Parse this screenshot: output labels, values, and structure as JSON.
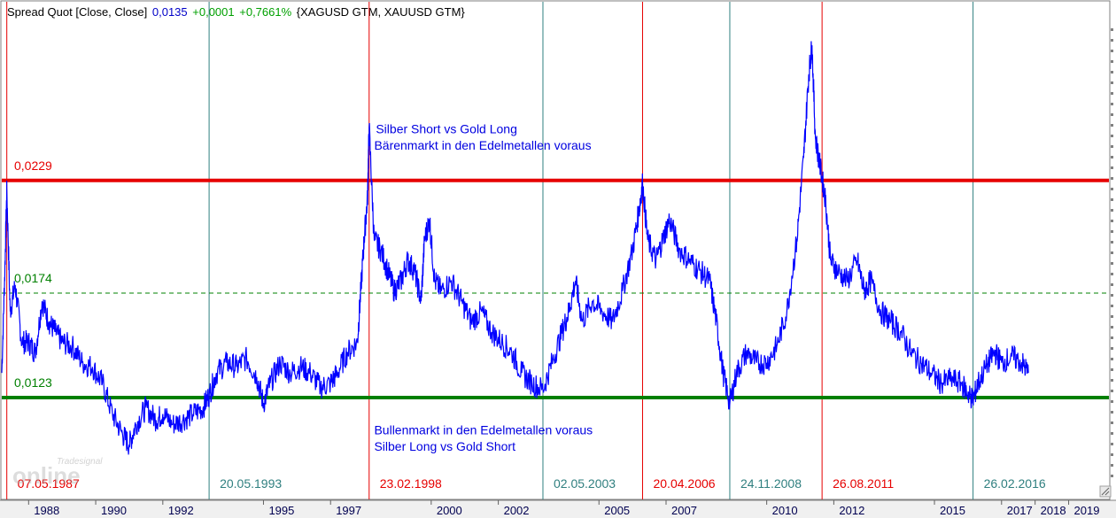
{
  "header": {
    "name": "Spread Quot [Close, Close]",
    "last": "0,0135",
    "change": "+0,0001",
    "change_pct": "+0,7661%",
    "symbols": "{XAGUSD GTM, XAUUSD GTM}"
  },
  "colors": {
    "series": "#0000ff",
    "red": "#e60000",
    "green": "#008000",
    "teal": "#2f7f7f",
    "axis_text": "#000050",
    "header_blue": "#0000c8",
    "header_green": "#00a000"
  },
  "watermark": {
    "brand": "Tradesignal",
    "name": "online"
  },
  "chart_data": {
    "type": "line",
    "xlabel": "",
    "ylabel": "",
    "x_range": [
      1987.2,
      2020.2
    ],
    "y_range": [
      0.0075,
      0.0305
    ],
    "grid": false,
    "x_ticks": [
      "1988",
      "1990",
      "1992",
      "1995",
      "1997",
      "2000",
      "2002",
      "2005",
      "2007",
      "2010",
      "2012",
      "2015",
      "2017",
      "2018",
      "2019"
    ],
    "x_tick_years": [
      1988,
      1990,
      1992,
      1995,
      1997,
      2000,
      2002,
      2005,
      2007,
      2010,
      2012,
      2015,
      2017,
      2018,
      2019
    ],
    "hlines": [
      {
        "label": "0,0229",
        "value": 0.0229,
        "style": "solid",
        "color": "red"
      },
      {
        "label": "0,0174",
        "value": 0.0174,
        "style": "dashed",
        "color": "green"
      },
      {
        "label": "0,0123",
        "value": 0.0123,
        "style": "solid",
        "color": "green"
      }
    ],
    "vlines": [
      {
        "date": "07.05.1987",
        "x": 1987.35,
        "color": "red"
      },
      {
        "date": "20.05.1993",
        "x": 1993.38,
        "color": "teal"
      },
      {
        "date": "23.02.1998",
        "x": 1998.15,
        "color": "red"
      },
      {
        "date": "02.05.2003",
        "x": 2003.33,
        "color": "teal"
      },
      {
        "date": "20.04.2006",
        "x": 2006.3,
        "color": "red"
      },
      {
        "date": "24.11.2008",
        "x": 2008.9,
        "color": "teal"
      },
      {
        "date": "26.08.2011",
        "x": 2011.65,
        "color": "red"
      },
      {
        "date": "26.02.2016",
        "x": 2016.15,
        "color": "teal"
      }
    ],
    "annotations": [
      {
        "text": "Silber Short vs Gold Long",
        "x": 1998.35,
        "y": 0.0252
      },
      {
        "text": "Bärenmarkt in den Edelmetallen voraus",
        "x": 1998.3,
        "y": 0.0244
      },
      {
        "text": "Bullenmarkt in den Edelmetallen voraus",
        "x": 1998.3,
        "y": 0.0105
      },
      {
        "text": "Silber Long vs Gold Short",
        "x": 1998.3,
        "y": 0.0097
      }
    ],
    "series": [
      {
        "name": "Spread Quot",
        "points": [
          [
            1987.2,
            0.0135
          ],
          [
            1987.3,
            0.019
          ],
          [
            1987.35,
            0.0225
          ],
          [
            1987.45,
            0.0165
          ],
          [
            1987.6,
            0.0178
          ],
          [
            1987.8,
            0.015
          ],
          [
            1988.0,
            0.015
          ],
          [
            1988.2,
            0.0145
          ],
          [
            1988.4,
            0.017
          ],
          [
            1988.6,
            0.016
          ],
          [
            1988.8,
            0.0155
          ],
          [
            1989.0,
            0.015
          ],
          [
            1989.3,
            0.0148
          ],
          [
            1989.6,
            0.014
          ],
          [
            1989.9,
            0.0138
          ],
          [
            1990.2,
            0.013
          ],
          [
            1990.5,
            0.0115
          ],
          [
            1990.8,
            0.0105
          ],
          [
            1991.0,
            0.01
          ],
          [
            1991.2,
            0.011
          ],
          [
            1991.5,
            0.0118
          ],
          [
            1991.8,
            0.0112
          ],
          [
            1992.0,
            0.0115
          ],
          [
            1992.3,
            0.011
          ],
          [
            1992.6,
            0.0112
          ],
          [
            1992.9,
            0.0115
          ],
          [
            1993.2,
            0.0118
          ],
          [
            1993.4,
            0.0125
          ],
          [
            1993.6,
            0.0135
          ],
          [
            1993.9,
            0.014
          ],
          [
            1994.2,
            0.0138
          ],
          [
            1994.5,
            0.0142
          ],
          [
            1994.8,
            0.0133
          ],
          [
            1995.0,
            0.012
          ],
          [
            1995.2,
            0.013
          ],
          [
            1995.5,
            0.014
          ],
          [
            1995.8,
            0.0135
          ],
          [
            1996.1,
            0.0138
          ],
          [
            1996.4,
            0.0135
          ],
          [
            1996.7,
            0.0128
          ],
          [
            1997.0,
            0.013
          ],
          [
            1997.2,
            0.0135
          ],
          [
            1997.5,
            0.0145
          ],
          [
            1997.8,
            0.015
          ],
          [
            1997.9,
            0.0175
          ],
          [
            1998.0,
            0.02
          ],
          [
            1998.1,
            0.022
          ],
          [
            1998.15,
            0.0255
          ],
          [
            1998.3,
            0.02
          ],
          [
            1998.5,
            0.0195
          ],
          [
            1998.7,
            0.0185
          ],
          [
            1998.9,
            0.0175
          ],
          [
            1999.1,
            0.018
          ],
          [
            1999.3,
            0.019
          ],
          [
            1999.5,
            0.0185
          ],
          [
            1999.7,
            0.017
          ],
          [
            1999.8,
            0.02
          ],
          [
            1999.95,
            0.021
          ],
          [
            2000.1,
            0.018
          ],
          [
            2000.3,
            0.0175
          ],
          [
            2000.6,
            0.018
          ],
          [
            2000.9,
            0.017
          ],
          [
            2001.2,
            0.016
          ],
          [
            2001.5,
            0.0165
          ],
          [
            2001.8,
            0.0155
          ],
          [
            2002.1,
            0.015
          ],
          [
            2002.4,
            0.0145
          ],
          [
            2002.7,
            0.0135
          ],
          [
            2003.0,
            0.013
          ],
          [
            2003.33,
            0.0127
          ],
          [
            2003.6,
            0.014
          ],
          [
            2003.9,
            0.0155
          ],
          [
            2004.1,
            0.0165
          ],
          [
            2004.3,
            0.018
          ],
          [
            2004.5,
            0.016
          ],
          [
            2004.8,
            0.017
          ],
          [
            2005.1,
            0.0165
          ],
          [
            2005.4,
            0.016
          ],
          [
            2005.7,
            0.0175
          ],
          [
            2006.0,
            0.0195
          ],
          [
            2006.2,
            0.0215
          ],
          [
            2006.3,
            0.0228
          ],
          [
            2006.45,
            0.02
          ],
          [
            2006.7,
            0.019
          ],
          [
            2006.9,
            0.02
          ],
          [
            2007.1,
            0.021
          ],
          [
            2007.4,
            0.0195
          ],
          [
            2007.7,
            0.019
          ],
          [
            2008.0,
            0.0185
          ],
          [
            2008.3,
            0.018
          ],
          [
            2008.5,
            0.016
          ],
          [
            2008.7,
            0.0135
          ],
          [
            2008.9,
            0.012
          ],
          [
            2009.1,
            0.0135
          ],
          [
            2009.4,
            0.0145
          ],
          [
            2009.7,
            0.014
          ],
          [
            2010.0,
            0.014
          ],
          [
            2010.3,
            0.0148
          ],
          [
            2010.6,
            0.0165
          ],
          [
            2010.9,
            0.02
          ],
          [
            2011.1,
            0.024
          ],
          [
            2011.25,
            0.028
          ],
          [
            2011.35,
            0.0295
          ],
          [
            2011.45,
            0.025
          ],
          [
            2011.6,
            0.0235
          ],
          [
            2011.75,
            0.022
          ],
          [
            2011.9,
            0.019
          ],
          [
            2012.1,
            0.0185
          ],
          [
            2012.4,
            0.018
          ],
          [
            2012.7,
            0.019
          ],
          [
            2012.9,
            0.0175
          ],
          [
            2013.1,
            0.018
          ],
          [
            2013.4,
            0.0165
          ],
          [
            2013.7,
            0.016
          ],
          [
            2014.0,
            0.0155
          ],
          [
            2014.3,
            0.0145
          ],
          [
            2014.6,
            0.014
          ],
          [
            2014.9,
            0.0135
          ],
          [
            2015.2,
            0.013
          ],
          [
            2015.5,
            0.0132
          ],
          [
            2015.8,
            0.013
          ],
          [
            2016.0,
            0.0125
          ],
          [
            2016.15,
            0.0122
          ],
          [
            2016.3,
            0.013
          ],
          [
            2016.6,
            0.014
          ],
          [
            2016.8,
            0.0145
          ],
          [
            2017.0,
            0.014
          ],
          [
            2017.3,
            0.0143
          ],
          [
            2017.6,
            0.014
          ],
          [
            2017.8,
            0.0135
          ]
        ]
      }
    ]
  }
}
